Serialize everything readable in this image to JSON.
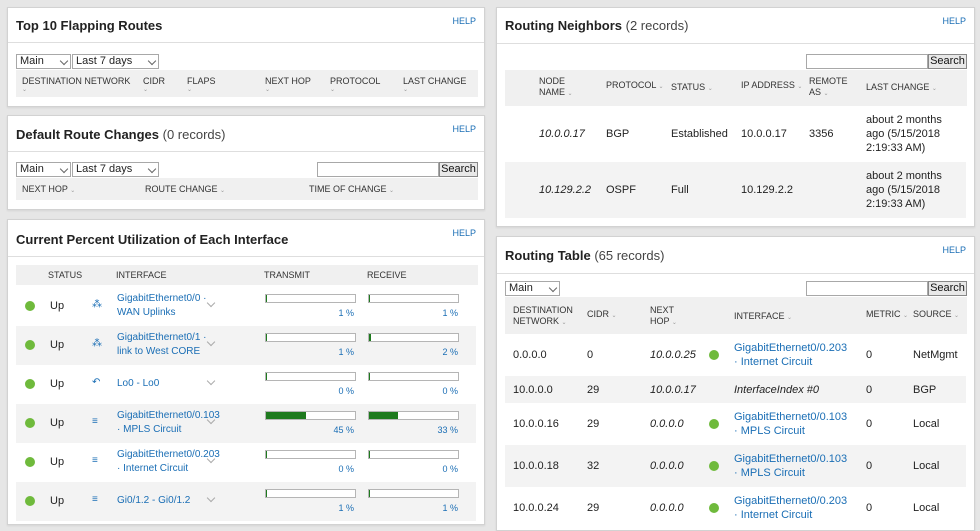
{
  "flapping": {
    "title": "Top 10 Flapping Routes",
    "help": "HELP",
    "select1": "Main",
    "select2": "Last 7 days",
    "columns": [
      "DESTINATION NETWORK",
      "CIDR",
      "FLAPS",
      "NEXT HOP",
      "PROTOCOL",
      "LAST CHANGE"
    ]
  },
  "default_route": {
    "title": "Default Route Changes",
    "records": "(0 records)",
    "help": "HELP",
    "select1": "Main",
    "select2": "Last 7 days",
    "search_button": "Search",
    "columns": [
      "NEXT HOP",
      "ROUTE CHANGE",
      "TIME OF CHANGE"
    ]
  },
  "utilization": {
    "title": "Current Percent Utilization of Each Interface",
    "help": "HELP",
    "columns": [
      "STATUS",
      "INTERFACE",
      "TRANSMIT",
      "RECEIVE"
    ],
    "rows": [
      {
        "status": "Up",
        "iface1": "GigabitEthernet0/0 ·",
        "iface2": "WAN Uplinks",
        "icon": "network-icon",
        "tx": 1,
        "rx": 1,
        "tx_label": "1 %",
        "rx_label": "1 %"
      },
      {
        "status": "Up",
        "iface1": "GigabitEthernet0/1 ·",
        "iface2": "link to West CORE",
        "icon": "network-icon",
        "tx": 1,
        "rx": 2,
        "tx_label": "1 %",
        "rx_label": "2 %"
      },
      {
        "status": "Up",
        "iface1": "Lo0 - Lo0",
        "iface2": "",
        "icon": "loopback-icon",
        "tx": 0,
        "rx": 0,
        "tx_label": "0 %",
        "rx_label": "0 %"
      },
      {
        "status": "Up",
        "iface1": "GigabitEthernet0/0.103",
        "iface2": "· MPLS Circuit",
        "icon": "subinterface-icon",
        "tx": 45,
        "rx": 33,
        "tx_label": "45 %",
        "rx_label": "33 %"
      },
      {
        "status": "Up",
        "iface1": "GigabitEthernet0/0.203",
        "iface2": "· Internet Circuit",
        "icon": "subinterface-icon",
        "tx": 0,
        "rx": 0,
        "tx_label": "0 %",
        "rx_label": "0 %"
      },
      {
        "status": "Up",
        "iface1": "Gi0/1.2 - Gi0/1.2",
        "iface2": "",
        "icon": "subinterface-icon",
        "tx": 1,
        "rx": 1,
        "tx_label": "1 %",
        "rx_label": "1 %"
      }
    ]
  },
  "neighbors": {
    "title": "Routing Neighbors",
    "records": "(2 records)",
    "help": "HELP",
    "search_button": "Search",
    "columns": [
      "NODE NAME",
      "PROTOCOL",
      "STATUS",
      "IP ADDRESS",
      "REMOTE AS",
      "LAST CHANGE"
    ],
    "rows": [
      {
        "node": "10.0.0.17",
        "protocol": "BGP",
        "status": "Established",
        "ip": "10.0.0.17",
        "as": "3356",
        "change1": "about 2 months",
        "change2": "ago (5/15/2018",
        "change3": "2:19:33 AM)"
      },
      {
        "node": "10.129.2.2",
        "protocol": "OSPF",
        "status": "Full",
        "ip": "10.129.2.2",
        "as": "",
        "change1": "about 2 months",
        "change2": "ago (5/15/2018",
        "change3": "2:19:33 AM)"
      }
    ]
  },
  "routing_table": {
    "title": "Routing Table",
    "records": "(65 records)",
    "help": "HELP",
    "select1": "Main",
    "search_button": "Search",
    "columns": [
      "DESTINATION NETWORK",
      "CIDR",
      "NEXT HOP",
      "INTERFACE",
      "METRIC",
      "SOURCE"
    ],
    "rows": [
      {
        "dest": "0.0.0.0",
        "cidr": "0",
        "hop": "10.0.0.25",
        "if1": "GigabitEthernet0/0.203",
        "if2": "· Internet Circuit",
        "dot": true,
        "metric": "0",
        "source": "NetMgmt"
      },
      {
        "dest": "10.0.0.0",
        "cidr": "29",
        "hop": "10.0.0.17",
        "if1": "InterfaceIndex #0",
        "if2": "",
        "dot": false,
        "metric": "0",
        "source": "BGP"
      },
      {
        "dest": "10.0.0.16",
        "cidr": "29",
        "hop": "0.0.0.0",
        "if1": "GigabitEthernet0/0.103",
        "if2": "· MPLS Circuit",
        "dot": true,
        "metric": "0",
        "source": "Local"
      },
      {
        "dest": "10.0.0.18",
        "cidr": "32",
        "hop": "0.0.0.0",
        "if1": "GigabitEthernet0/0.103",
        "if2": "· MPLS Circuit",
        "dot": true,
        "metric": "0",
        "source": "Local"
      },
      {
        "dest": "10.0.0.24",
        "cidr": "29",
        "hop": "0.0.0.0",
        "if1": "GigabitEthernet0/0.203",
        "if2": "· Internet Circuit",
        "dot": true,
        "metric": "0",
        "source": "Local"
      }
    ]
  }
}
